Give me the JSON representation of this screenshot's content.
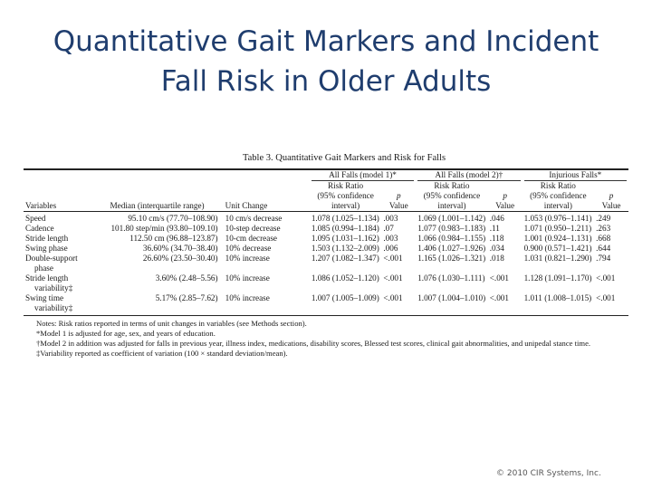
{
  "slide": {
    "title_line1": "Quantitative Gait Markers and Incident",
    "title_line2": "Fall Risk in Older Adults",
    "copyright": "© 2010 CIR Systems, Inc."
  },
  "table": {
    "caption": "Table 3.  Quantitative Gait Markers and Risk for Falls",
    "groups": [
      "All Falls (model 1)*",
      "All Falls (model 2)†",
      "Injurious Falls*"
    ],
    "sub_rr_line1": "Risk Ratio",
    "sub_rr_line2": "(95% confidence",
    "sub_rr_line3": "interval)",
    "sub_p_line1": "p",
    "sub_p_line2": "Value",
    "col_variables": "Variables",
    "col_median": "Median (interquartile range)",
    "col_unit": "Unit Change",
    "rows": [
      {
        "var": "Speed",
        "var2": "",
        "median": "95.10 cm/s (77.70–108.90)",
        "unit": "10 cm/s decrease",
        "rr1": "1.078 (1.025–1.134)",
        "p1": ".003",
        "rr2": "1.069 (1.001–1.142)",
        "p2": ".046",
        "rr3": "1.053 (0.976–1.141)",
        "p3": ".249"
      },
      {
        "var": "Cadence",
        "var2": "",
        "median": "101.80 step/min (93.80–109.10)",
        "unit": "10-step decrease",
        "rr1": "1.085 (0.994–1.184)",
        "p1": ".07",
        "rr2": "1.077 (0.983–1.183)",
        "p2": ".11",
        "rr3": "1.071 (0.950–1.211)",
        "p3": ".263"
      },
      {
        "var": "Stride length",
        "var2": "",
        "median": "112.50 cm (96.88–123.87)",
        "unit": "10-cm decrease",
        "rr1": "1.095 (1.031–1.162)",
        "p1": ".003",
        "rr2": "1.066 (0.984–1.155)",
        "p2": ".118",
        "rr3": "1.001 (0.924–1.131)",
        "p3": ".668"
      },
      {
        "var": "Swing phase",
        "var2": "",
        "median": "36.60% (34.70–38.40)",
        "unit": "10% decrease",
        "rr1": "1.503 (1.132–2.009)",
        "p1": ".006",
        "rr2": "1.406 (1.027–1.926)",
        "p2": ".034",
        "rr3": "0.900 (0.571–1.421)",
        "p3": ".644"
      },
      {
        "var": "Double-support",
        "var2": "phase",
        "median": "26.60% (23.50–30.40)",
        "unit": "10% increase",
        "rr1": "1.207 (1.082–1.347)",
        "p1": "<.001",
        "rr2": "1.165 (1.026–1.321)",
        "p2": ".018",
        "rr3": "1.031 (0.821–1.290)",
        "p3": ".794"
      },
      {
        "var": "Stride length",
        "var2": "variability‡",
        "median": "3.60% (2.48–5.56)",
        "unit": "10% increase",
        "rr1": "1.086 (1.052–1.120)",
        "p1": "<.001",
        "rr2": "1.076 (1.030–1.111)",
        "p2": "<.001",
        "rr3": "1.128 (1.091–1.170)",
        "p3": "<.001"
      },
      {
        "var": "Swing time",
        "var2": "variability‡",
        "median": "5.17% (2.85–7.62)",
        "unit": "10% increase",
        "rr1": "1.007 (1.005–1.009)",
        "p1": "<.001",
        "rr2": "1.007 (1.004–1.010)",
        "p2": "<.001",
        "rr3": "1.011 (1.008–1.015)",
        "p3": "<.001"
      }
    ],
    "notes": [
      "Notes: Risk ratios reported in terms of unit changes in variables (see Methods section).",
      "*Model 1 is adjusted for age, sex, and years of education.",
      "†Model 2 in addition was adjusted for falls in previous year, illness index, medications, disability scores, Blessed test scores, clinical gait abnormalities, and unipedal stance time.",
      "‡Variability reported as coefficient of variation (100 × standard deviation/mean)."
    ]
  }
}
